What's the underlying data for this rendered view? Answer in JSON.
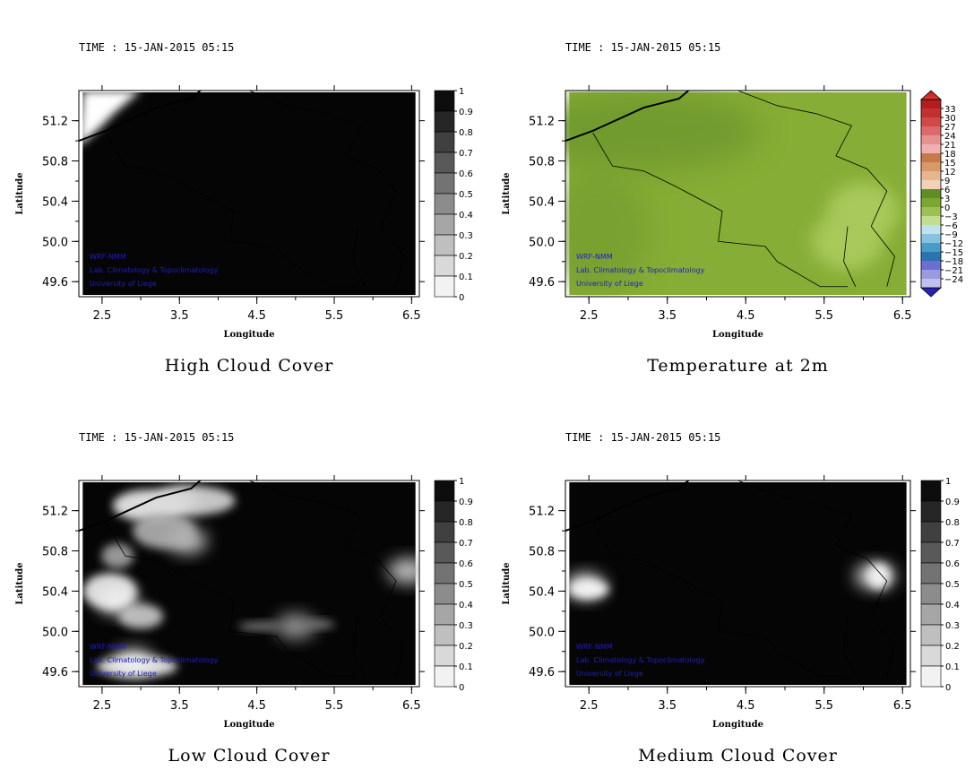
{
  "chart_data": [
    {
      "type": "heatmap",
      "title": "High Cloud Cover",
      "time_label": "TIME : 15-JAN-2015 05:15",
      "xlabel": "Longitude",
      "ylabel": "Latitude",
      "x_ticks": [
        "2.5",
        "3.5",
        "4.5",
        "5.5",
        "6.5"
      ],
      "y_ticks": [
        "49.6",
        "50.0",
        "50.4",
        "50.8",
        "51.2"
      ],
      "xlim": [
        2.2,
        6.6
      ],
      "ylim": [
        49.45,
        51.5
      ],
      "colorbar": {
        "ticks": [
          "0",
          "0.1",
          "0.2",
          "0.3",
          "0.4",
          "0.5",
          "0.6",
          "0.7",
          "0.8",
          "0.9",
          "1"
        ]
      },
      "credits": [
        "WRF-NMM",
        "Lab. Climatology & Topoclimatology",
        "University of Liege"
      ],
      "field": {
        "background_value": 0.98,
        "features": [
          {
            "lon": 2.45,
            "lat": 51.42,
            "value": 0.0,
            "description": "clear"
          }
        ]
      }
    },
    {
      "type": "heatmap",
      "title": "Temperature at 2m",
      "time_label": "TIME : 15-JAN-2015 05:15",
      "xlabel": "Longitude",
      "ylabel": "Latitude",
      "x_ticks": [
        "2.5",
        "3.5",
        "4.5",
        "5.5",
        "6.5"
      ],
      "y_ticks": [
        "49.6",
        "50.0",
        "50.4",
        "50.8",
        "51.2"
      ],
      "xlim": [
        2.2,
        6.6
      ],
      "ylim": [
        49.45,
        51.5
      ],
      "colorbar": {
        "ticks": [
          "33",
          "30",
          "27",
          "24",
          "21",
          "18",
          "15",
          "12",
          "9",
          "6",
          "3",
          "0",
          "−3",
          "−6",
          "−9",
          "−12",
          "−15",
          "−18",
          "−21",
          "−24"
        ]
      },
      "credits": [
        "WRF-NMM",
        "Lab. Climatology & Topoclimatology",
        "University of Liege"
      ],
      "field": {
        "background_value": 6,
        "features": [
          {
            "lon": 6.0,
            "lat": 50.3,
            "value": 3
          },
          {
            "lon": 5.8,
            "lat": 50.0,
            "value": 3
          }
        ]
      }
    },
    {
      "type": "heatmap",
      "title": "Low Cloud Cover",
      "time_label": "TIME : 15-JAN-2015 05:15",
      "xlabel": "Longitude",
      "ylabel": "Latitude",
      "x_ticks": [
        "2.5",
        "3.5",
        "4.5",
        "5.5",
        "6.5"
      ],
      "y_ticks": [
        "49.6",
        "50.0",
        "50.4",
        "50.8",
        "51.2"
      ],
      "xlim": [
        2.2,
        6.6
      ],
      "ylim": [
        49.45,
        51.5
      ],
      "colorbar": {
        "ticks": [
          "0",
          "0.1",
          "0.2",
          "0.3",
          "0.4",
          "0.5",
          "0.6",
          "0.7",
          "0.8",
          "0.9",
          "1"
        ]
      },
      "credits": [
        "WRF-NMM",
        "Lab. Climatology & Topoclimatology",
        "University of Liege"
      ],
      "field": {
        "background_value": 0.98,
        "features": [
          {
            "lon": 3.5,
            "lat": 51.3,
            "value": 0.1
          },
          {
            "lon": 3.6,
            "lat": 50.9,
            "value": 0.2
          },
          {
            "lon": 2.7,
            "lat": 50.3,
            "value": 0.1
          },
          {
            "lon": 2.9,
            "lat": 49.7,
            "value": 0.1
          },
          {
            "lon": 5.0,
            "lat": 50.05,
            "value": 0.4
          },
          {
            "lon": 6.45,
            "lat": 50.6,
            "value": 0.2
          }
        ]
      }
    },
    {
      "type": "heatmap",
      "title": "Medium Cloud Cover",
      "time_label": "TIME : 15-JAN-2015 05:15",
      "xlabel": "Longitude",
      "ylabel": "Latitude",
      "x_ticks": [
        "2.5",
        "3.5",
        "4.5",
        "5.5",
        "6.5"
      ],
      "y_ticks": [
        "49.6",
        "50.0",
        "50.4",
        "50.8",
        "51.2"
      ],
      "xlim": [
        2.2,
        6.6
      ],
      "ylim": [
        49.45,
        51.5
      ],
      "colorbar": {
        "ticks": [
          "0",
          "0.1",
          "0.2",
          "0.3",
          "0.4",
          "0.5",
          "0.6",
          "0.7",
          "0.8",
          "0.9",
          "1"
        ]
      },
      "credits": [
        "WRF-NMM",
        "Lab. Climatology & Topoclimatology",
        "University of Liege"
      ],
      "field": {
        "background_value": 0.98,
        "features": [
          {
            "lon": 2.45,
            "lat": 50.45,
            "value": 0.1
          },
          {
            "lon": 6.15,
            "lat": 50.55,
            "value": 0.1
          }
        ]
      }
    }
  ]
}
